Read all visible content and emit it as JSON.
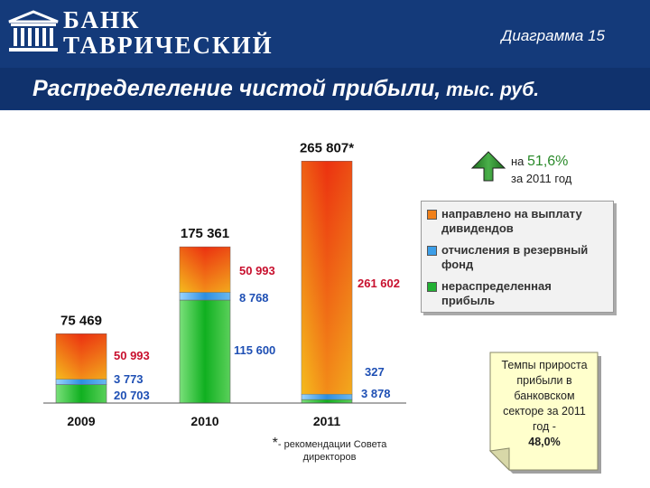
{
  "header": {
    "bank_name_line1": "БАНК",
    "bank_name_line2": "ТАВРИЧЕСКИЙ",
    "diagram_number": "Диаграмма 15",
    "title_main": "Распределеление чистой прибыли,",
    "title_unit": " тыс. руб."
  },
  "colors": {
    "header_bg": "#143a7a",
    "dividends": "#f05a1a",
    "reserve": "#56b0f0",
    "retained": "#22c033",
    "arrow": "#2e8b2e"
  },
  "growth": {
    "prefix": "на ",
    "percent": "51,6%",
    "period": "за 2011 год"
  },
  "legend": {
    "items": [
      {
        "label": "направлено на выплату дивидендов",
        "color": "#f0801a"
      },
      {
        "label": "отчисления в резервный фонд",
        "color": "#3c9ee8"
      },
      {
        "label": "нераспределенная прибыль",
        "color": "#22b033"
      }
    ]
  },
  "note": {
    "line1": "Темпы прироста прибыли в банковском секторе за 2011 год -",
    "value": "48,0%"
  },
  "footnote": {
    "star": "*",
    "text": "- рекомендации Совета директоров"
  },
  "chart_data": {
    "type": "bar",
    "stacked": true,
    "categories": [
      "2009",
      "2010",
      "2011"
    ],
    "totals": [
      75469,
      175361,
      265807
    ],
    "total_labels": [
      "75 469",
      "175 361",
      "265 807*"
    ],
    "series": [
      {
        "name": "нераспределенная прибыль",
        "values": [
          20703,
          115600,
          3878
        ],
        "labels": [
          "20 703",
          "115 600",
          "3 878"
        ]
      },
      {
        "name": "отчисления в резервный фонд",
        "values": [
          3773,
          8768,
          327
        ],
        "labels": [
          "3 773",
          "8 768",
          "327"
        ]
      },
      {
        "name": "направлено на выплату дивидендов",
        "values": [
          50993,
          50993,
          261602
        ],
        "labels": [
          "50 993",
          "50 993",
          "261 602"
        ]
      }
    ],
    "ylim": [
      0,
      265807
    ]
  }
}
